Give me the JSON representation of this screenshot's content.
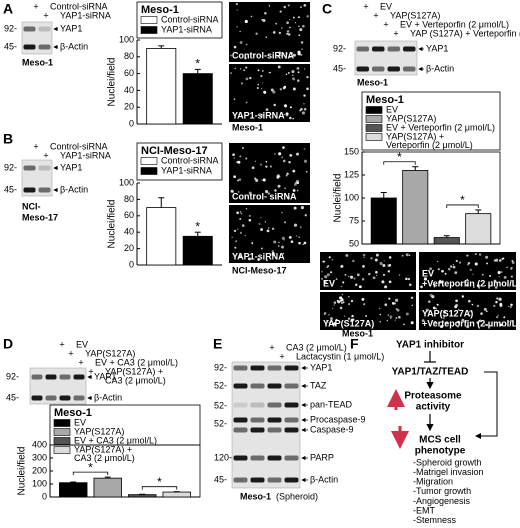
{
  "panel_labels": [
    "A",
    "B",
    "C",
    "D",
    "E",
    "F"
  ],
  "chart_data": [
    {
      "type": "bar",
      "title": "Meso-1",
      "y_label": "Nuclei/field",
      "ylim": [
        0,
        100
      ],
      "yticks": [
        0,
        20,
        40,
        60,
        80,
        100
      ],
      "series": [
        {
          "name": "Control-siRNA",
          "color": "#ffffff",
          "values": [
            90
          ],
          "errors": [
            3
          ]
        },
        {
          "name": "YAP1-siRNA",
          "color": "#000000",
          "values": [
            60
          ],
          "errors": [
            5
          ],
          "annotation": "*"
        }
      ]
    },
    {
      "type": "bar",
      "title": "NCI-Meso-17",
      "y_label": "Nuclei/field",
      "ylim": [
        0,
        100
      ],
      "yticks": [
        0,
        20,
        40,
        60,
        80,
        100
      ],
      "series": [
        {
          "name": "Control-siRNA",
          "color": "#ffffff",
          "values": [
            70
          ],
          "errors": [
            12
          ]
        },
        {
          "name": "YAP1-siRNA",
          "color": "#000000",
          "values": [
            35
          ],
          "errors": [
            5
          ],
          "annotation": "*"
        }
      ]
    },
    {
      "type": "bar",
      "title": "Meso-1",
      "y_label": "Nuclei/field",
      "ylim": [
        50,
        150
      ],
      "yticks": [
        50,
        75,
        100,
        125,
        150
      ],
      "significance_brackets": true,
      "series": [
        {
          "name": [
            "EV"
          ],
          "color": "#000000",
          "values": [
            100
          ],
          "errors": [
            6
          ]
        },
        {
          "name": [
            "YAP(S127A)"
          ],
          "color": "#a8a8a8",
          "values": [
            130
          ],
          "errors": [
            4
          ],
          "annotation": "*"
        },
        {
          "name": [
            "EV + Verteporfin (2 μmol/L)"
          ],
          "color": "#555555",
          "values": [
            57
          ],
          "errors": [
            2
          ]
        },
        {
          "name": [
            "YAP(S127A) +",
            "Verteporfin (2 μmol/L)"
          ],
          "color": "#dcdcdc",
          "values": [
            83
          ],
          "errors": [
            4
          ],
          "annotation": "*"
        }
      ]
    },
    {
      "type": "bar",
      "title": "Meso-1",
      "y_label": "Nuclei/field",
      "ylim": [
        0,
        400
      ],
      "yticks": [
        0,
        100,
        200,
        300,
        400
      ],
      "significance_brackets": true,
      "series": [
        {
          "name": [
            "EV"
          ],
          "color": "#000000",
          "values": [
            110
          ],
          "errors": [
            5
          ]
        },
        {
          "name": [
            "YAP(S127A)"
          ],
          "color": "#a8a8a8",
          "values": [
            145
          ],
          "errors": [
            8
          ],
          "annotation": "*"
        },
        {
          "name": [
            "EV + CA3 (2 μmol/L)"
          ],
          "color": "#555555",
          "values": [
            18
          ],
          "errors": [
            3
          ]
        },
        {
          "name": [
            "YAP(S127A) +",
            "CA3 (2 μmol/L)"
          ],
          "color": "#dcdcdc",
          "values": [
            38
          ],
          "errors": [
            3
          ],
          "annotation": "*"
        }
      ]
    }
  ],
  "blots": [
    {
      "lane_headers": [
        {
          "sign": "+",
          "label": [
            "Control-siRNA"
          ]
        },
        {
          "sign": "+",
          "label": [
            "YAP1-siRNA"
          ]
        }
      ],
      "markers": [
        "92-",
        "45-"
      ],
      "bands": [
        "YAP1",
        "β-Actin"
      ],
      "cell_line": [
        "Meso-1"
      ]
    },
    {
      "lane_headers": [
        {
          "sign": "+",
          "label": [
            "Control-siRNA"
          ]
        },
        {
          "sign": "+",
          "label": [
            "YAP1-siRNA"
          ]
        }
      ],
      "markers": [
        "92-",
        "45-"
      ],
      "bands": [
        "YAP1",
        "β-Actin"
      ],
      "cell_line": [
        "NCI-",
        "Meso-17"
      ]
    },
    {
      "lane_headers": [
        {
          "sign": "+",
          "label": [
            "EV"
          ]
        },
        {
          "sign": "+",
          "label": [
            "YAP(S127A)"
          ]
        },
        {
          "sign": "+",
          "label": [
            "EV + Verteporfin (2 μmol/L)"
          ]
        },
        {
          "sign": "+",
          "label": [
            "YAP (S127A) + Verteporfin (2 μmol/L)"
          ]
        }
      ],
      "markers": [
        "92-",
        "45-"
      ],
      "bands": [
        "YAP1",
        "β-Actin"
      ],
      "cell_line": [
        "Meso-1"
      ]
    },
    {
      "lane_headers": [
        {
          "sign": "+",
          "label": [
            "EV"
          ]
        },
        {
          "sign": "+",
          "label": [
            "YAP(S127A)"
          ]
        },
        {
          "sign": "+",
          "label": [
            "EV + CA3 (2 μmol/L)"
          ]
        },
        {
          "sign": "+",
          "label": [
            "YAP(S127A) +",
            "CA3 (2 μmol/L)"
          ]
        }
      ],
      "markers": [
        "92-",
        "45-"
      ],
      "bands": [
        "YAP1",
        "β-Actin"
      ]
    },
    {
      "lane_headers": [
        {
          "sign": "+",
          "label": [
            "CA3 (2 μmol/L)"
          ]
        },
        {
          "sign": "+",
          "label": [
            "Lactacystin (1 μmol/L)"
          ]
        }
      ],
      "markers": [
        "92-",
        "52-",
        "52-",
        "52-",
        "120-",
        "45-"
      ],
      "bands": [
        "YAP1",
        "TAZ",
        "pan-TEAD",
        "Procaspase-9",
        "Caspase-9",
        "PARP",
        "β-Actin"
      ],
      "cell_line": [
        "Meso-1"
      ],
      "condition": "(Spheroid)"
    }
  ],
  "images": [
    {
      "panels": [
        [
          "Control-siRNA"
        ],
        [
          "YAP1-siRNA"
        ]
      ],
      "cell_line": "Meso-1"
    },
    {
      "panels": [
        [
          "Control- siRNA"
        ],
        [
          "YAP1-siRNA"
        ]
      ],
      "cell_line": "NCI-Meso-17"
    },
    {
      "panels": [
        [
          "EV"
        ],
        [
          "EV",
          "+Verteporfin (2 μmol/L)"
        ],
        [
          "YAP(S127A)"
        ],
        [
          "YAP(S127A)",
          "+Verteporfin (2 μmol/L)"
        ]
      ],
      "cell_line": "Meso-1"
    }
  ],
  "diagram": {
    "inhibitor": "YAP1 inhibitor",
    "complex": "YAP1/TAZ/TEAD",
    "proteasome": [
      "Proteasome",
      "activity"
    ],
    "phenotype": [
      "MCS cell",
      "phenotype"
    ],
    "outcomes": [
      "-Spheroid growth",
      "-Matrigel invasion",
      "-Migration",
      "-Tumor growth",
      "-Angiogenesis",
      "-EMT",
      "-Stemness"
    ]
  }
}
